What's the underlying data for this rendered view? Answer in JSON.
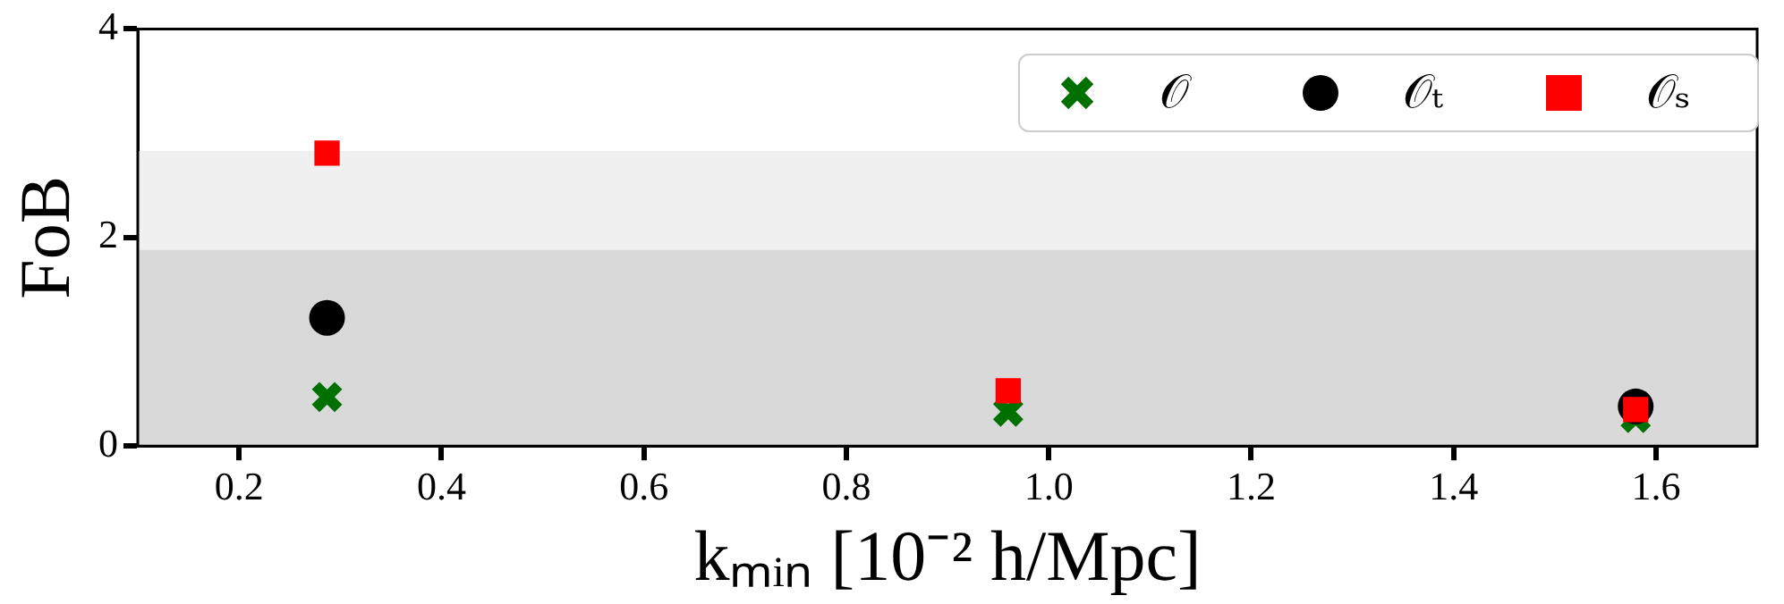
{
  "chart_data": {
    "type": "scatter",
    "xlabel": "kₘᵢₙ [10⁻² h/Mpc]",
    "ylabel": "FoB",
    "xlim": [
      0.1,
      1.7
    ],
    "xticks": [
      {
        "value": 0.2,
        "label": "0.2"
      },
      {
        "value": 0.4,
        "label": "0.4"
      },
      {
        "value": 0.6,
        "label": "0.6"
      },
      {
        "value": 0.8,
        "label": "0.8"
      },
      {
        "value": 1,
        "label": "1.0"
      },
      {
        "value": 1.2,
        "label": "1.2"
      },
      {
        "value": 1.4,
        "label": "1.4"
      },
      {
        "value": 1.6,
        "label": "1.6"
      }
    ],
    "ylim": [
      0,
      4
    ],
    "yticks": [
      0,
      2,
      4
    ],
    "x": [
      0.287,
      0.96,
      1.58
    ],
    "grid": false,
    "legend": "top right",
    "bands": [
      {
        "axis": "y",
        "from": 0,
        "to": 2.83,
        "color": "#f0f0f0"
      },
      {
        "axis": "y",
        "from": 0,
        "to": 1.88,
        "color": "#d9d9d9"
      }
    ],
    "series": [
      {
        "name": "𝒪",
        "color": "#007000",
        "marker": "cross",
        "values": [
          0.47,
          0.33,
          0.27
        ]
      },
      {
        "name": "𝒪ₜ",
        "color": "#000000",
        "marker": "circle",
        "values": [
          1.23,
          null,
          0.38
        ]
      },
      {
        "name": "𝒪ₛ",
        "color": "#ff0000",
        "marker": "square",
        "values": [
          2.81,
          0.53,
          0.35
        ]
      }
    ]
  }
}
